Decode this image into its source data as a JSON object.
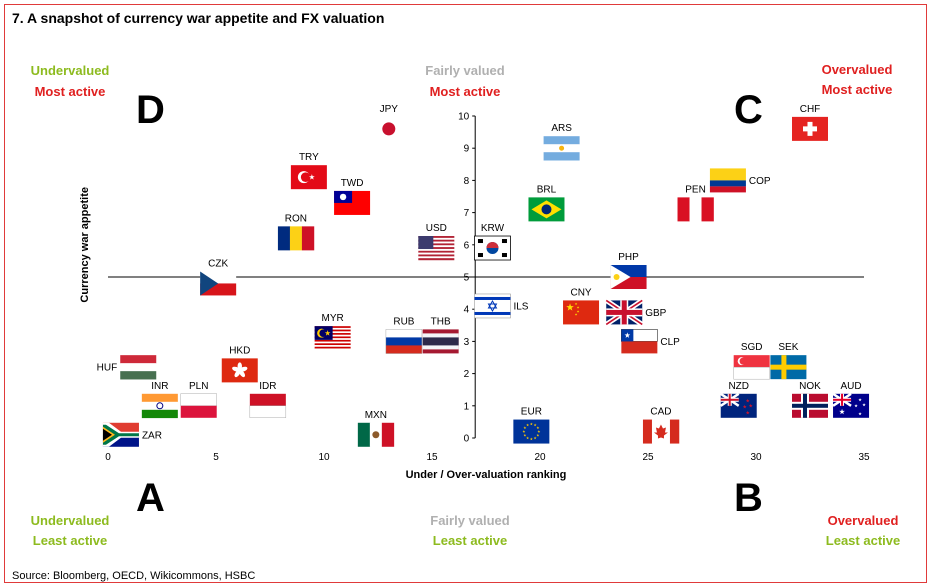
{
  "title": "7. A snapshot of currency war appetite and FX valuation",
  "source": "Source: Bloomberg, OECD, Wikicommons, HSBC",
  "quadrants": {
    "top_left": {
      "letter": "D",
      "line1": "Undervalued",
      "line2": "Most active"
    },
    "top_mid": {
      "line1": "Fairly valued",
      "line2": "Most active"
    },
    "top_right": {
      "letter": "C",
      "line1": "Overvalued",
      "line2": "Most active"
    },
    "bottom_left": {
      "letter": "A",
      "line1": "Undervalued",
      "line2": "Least active"
    },
    "bottom_mid": {
      "line1": "Fairly valued",
      "line2": "Least active"
    },
    "bottom_right": {
      "letter": "B",
      "line1": "Overvalued",
      "line2": "Least active"
    }
  },
  "chart_data": {
    "type": "scatter",
    "title": "A snapshot of currency war appetite and FX valuation",
    "xlabel": "Under / Over-valuation ranking",
    "ylabel": "Currency war appetite",
    "xlim": [
      0,
      35
    ],
    "ylim": [
      0,
      10
    ],
    "x_ticks": [
      "0",
      "5",
      "10",
      "15",
      "20",
      "25",
      "30",
      "35"
    ],
    "y_ticks": [
      "0",
      "1",
      "2",
      "3",
      "4",
      "5",
      "6",
      "7",
      "8",
      "9",
      "10"
    ],
    "cross_x": 17,
    "cross_y": 5,
    "points": [
      {
        "code": "JPY",
        "x": 13,
        "y": 9.6,
        "flag": "japan"
      },
      {
        "code": "ARS",
        "x": 21,
        "y": 9.0,
        "flag": "argentina"
      },
      {
        "code": "CHF",
        "x": 32.5,
        "y": 9.6,
        "flag": "switzerland"
      },
      {
        "code": "TRY",
        "x": 9.3,
        "y": 8.1,
        "flag": "turkey"
      },
      {
        "code": "TWD",
        "x": 11.3,
        "y": 7.3,
        "flag": "taiwan"
      },
      {
        "code": "RON",
        "x": 8.7,
        "y": 6.2,
        "flag": "romania"
      },
      {
        "code": "USD",
        "x": 15.2,
        "y": 5.9,
        "flag": "usa"
      },
      {
        "code": "KRW",
        "x": 17.8,
        "y": 5.9,
        "flag": "korea"
      },
      {
        "code": "BRL",
        "x": 20.3,
        "y": 7.1,
        "flag": "brazil"
      },
      {
        "code": "PEN",
        "x": 27.2,
        "y": 7.1,
        "flag": "peru"
      },
      {
        "code": "COP",
        "x": 28.7,
        "y": 8.0,
        "flag": "colombia"
      },
      {
        "code": "CZK",
        "x": 5.1,
        "y": 4.8,
        "flag": "czech"
      },
      {
        "code": "PHP",
        "x": 24.1,
        "y": 5.0,
        "flag": "philippines"
      },
      {
        "code": "ILS",
        "x": 17.8,
        "y": 4.1,
        "flag": "israel"
      },
      {
        "code": "CNY",
        "x": 21.9,
        "y": 3.9,
        "flag": "china"
      },
      {
        "code": "GBP",
        "x": 23.9,
        "y": 3.9,
        "flag": "uk"
      },
      {
        "code": "CLP",
        "x": 24.6,
        "y": 3.0,
        "flag": "chile"
      },
      {
        "code": "MYR",
        "x": 10.4,
        "y": 3.1,
        "flag": "malaysia"
      },
      {
        "code": "RUB",
        "x": 13.7,
        "y": 3.0,
        "flag": "russia"
      },
      {
        "code": "THB",
        "x": 15.4,
        "y": 3.0,
        "flag": "thailand"
      },
      {
        "code": "HKD",
        "x": 6.1,
        "y": 2.1,
        "flag": "hongkong"
      },
      {
        "code": "HUF",
        "x": 1.4,
        "y": 2.2,
        "flag": "hungary"
      },
      {
        "code": "INR",
        "x": 2.4,
        "y": 1.0,
        "flag": "india"
      },
      {
        "code": "PLN",
        "x": 4.2,
        "y": 1.0,
        "flag": "poland"
      },
      {
        "code": "IDR",
        "x": 7.4,
        "y": 1.0,
        "flag": "indonesia"
      },
      {
        "code": "ZAR",
        "x": 0.6,
        "y": 0.1,
        "flag": "southafrica"
      },
      {
        "code": "MXN",
        "x": 12.4,
        "y": 0.1,
        "flag": "mexico"
      },
      {
        "code": "EUR",
        "x": 19.6,
        "y": 0.2,
        "flag": "eu"
      },
      {
        "code": "CAD",
        "x": 25.6,
        "y": 0.2,
        "flag": "canada"
      },
      {
        "code": "SGD",
        "x": 29.8,
        "y": 2.2,
        "flag": "singapore"
      },
      {
        "code": "SEK",
        "x": 31.5,
        "y": 2.2,
        "flag": "sweden"
      },
      {
        "code": "NZD",
        "x": 29.2,
        "y": 1.0,
        "flag": "newzealand"
      },
      {
        "code": "NOK",
        "x": 32.5,
        "y": 1.0,
        "flag": "norway"
      },
      {
        "code": "AUD",
        "x": 34.4,
        "y": 1.0,
        "flag": "australia"
      }
    ]
  }
}
